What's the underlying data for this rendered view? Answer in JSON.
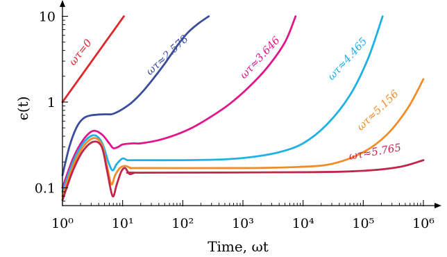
{
  "chart_data": {
    "type": "line",
    "title": "",
    "xlabel": "Time, ωt",
    "ylabel": "ϵ(t)",
    "x_scale": "log",
    "y_scale": "log",
    "xlim": [
      1,
      1000000
    ],
    "ylim": [
      0.062,
      11.5
    ],
    "grid": false,
    "legend": "labels placed beside each curve",
    "x_ticks": [
      {
        "value": 1,
        "label": "10⁰"
      },
      {
        "value": 10,
        "label": "10¹"
      },
      {
        "value": 100,
        "label": "10²"
      },
      {
        "value": 1000,
        "label": "10³"
      },
      {
        "value": 10000,
        "label": "10⁴"
      },
      {
        "value": 100000,
        "label": "10⁵"
      },
      {
        "value": 1000000,
        "label": "10⁶"
      }
    ],
    "y_ticks": [
      {
        "value": 0.1,
        "label": "0.1"
      },
      {
        "value": 1,
        "label": "1"
      },
      {
        "value": 10,
        "label": "10"
      }
    ],
    "series": [
      {
        "name": "ωτ=0",
        "color": "#e0262b",
        "points": [
          [
            1,
            1.0
          ],
          [
            10.5,
            10.0
          ]
        ]
      },
      {
        "name": "ωτ≈2.578",
        "color": "#3a4d9c",
        "points": [
          [
            1,
            0.14
          ],
          [
            1.3,
            0.3
          ],
          [
            1.7,
            0.5
          ],
          [
            2.2,
            0.64
          ],
          [
            3,
            0.7
          ],
          [
            5,
            0.72
          ],
          [
            6.5,
            0.72
          ],
          [
            8,
            0.76
          ],
          [
            10,
            0.83
          ],
          [
            14,
            0.98
          ],
          [
            20,
            1.25
          ],
          [
            30,
            1.75
          ],
          [
            50,
            2.8
          ],
          [
            80,
            4.5
          ],
          [
            120,
            6.4
          ],
          [
            180,
            8.2
          ],
          [
            270,
            10.0
          ]
        ]
      },
      {
        "name": "ωτ≈3.646",
        "color": "#e0158c",
        "points": [
          [
            1,
            0.1
          ],
          [
            1.5,
            0.22
          ],
          [
            2.2,
            0.36
          ],
          [
            3.2,
            0.46
          ],
          [
            4.5,
            0.42
          ],
          [
            6,
            0.33
          ],
          [
            7,
            0.29
          ],
          [
            8.5,
            0.3
          ],
          [
            10,
            0.32
          ],
          [
            15,
            0.33
          ],
          [
            20,
            0.33
          ],
          [
            40,
            0.36
          ],
          [
            80,
            0.42
          ],
          [
            150,
            0.51
          ],
          [
            300,
            0.68
          ],
          [
            600,
            0.95
          ],
          [
            1200,
            1.45
          ],
          [
            2500,
            2.5
          ],
          [
            5000,
            5.0
          ],
          [
            7500,
            10.0
          ]
        ]
      },
      {
        "name": "ωτ≈4.465",
        "color": "#1fb1e6",
        "points": [
          [
            1,
            0.09
          ],
          [
            1.5,
            0.2
          ],
          [
            2.2,
            0.33
          ],
          [
            3.3,
            0.41
          ],
          [
            4.5,
            0.34
          ],
          [
            5.8,
            0.2
          ],
          [
            6.8,
            0.16
          ],
          [
            8,
            0.19
          ],
          [
            10,
            0.22
          ],
          [
            12,
            0.21
          ],
          [
            15,
            0.21
          ],
          [
            100,
            0.21
          ],
          [
            500,
            0.215
          ],
          [
            1500,
            0.23
          ],
          [
            4000,
            0.26
          ],
          [
            10000,
            0.33
          ],
          [
            25000,
            0.55
          ],
          [
            60000,
            1.2
          ],
          [
            120000,
            3.2
          ],
          [
            210000,
            10.0
          ]
        ]
      },
      {
        "name": "ωτ≈5.156",
        "color": "#f28c28",
        "points": [
          [
            1,
            0.08
          ],
          [
            1.5,
            0.18
          ],
          [
            2.2,
            0.3
          ],
          [
            3.3,
            0.38
          ],
          [
            4.5,
            0.32
          ],
          [
            5.5,
            0.18
          ],
          [
            6.5,
            0.11
          ],
          [
            7.5,
            0.14
          ],
          [
            9,
            0.17
          ],
          [
            11,
            0.18
          ],
          [
            14,
            0.17
          ],
          [
            20,
            0.17
          ],
          [
            1000,
            0.17
          ],
          [
            8000,
            0.175
          ],
          [
            30000,
            0.19
          ],
          [
            100000,
            0.26
          ],
          [
            250000,
            0.42
          ],
          [
            550000,
            0.85
          ],
          [
            1000000,
            1.85
          ]
        ]
      },
      {
        "name": "ωτ≈5.765",
        "color": "#c0254a",
        "points": [
          [
            1,
            0.072
          ],
          [
            1.5,
            0.16
          ],
          [
            2.2,
            0.27
          ],
          [
            3.3,
            0.345
          ],
          [
            4.5,
            0.3
          ],
          [
            5.5,
            0.16
          ],
          [
            6.8,
            0.08
          ],
          [
            8,
            0.11
          ],
          [
            9.5,
            0.155
          ],
          [
            11,
            0.17
          ],
          [
            13,
            0.145
          ],
          [
            16,
            0.15
          ],
          [
            20,
            0.15
          ],
          [
            10000,
            0.152
          ],
          [
            100000,
            0.158
          ],
          [
            400000,
            0.175
          ],
          [
            1000000,
            0.21
          ]
        ]
      }
    ]
  }
}
